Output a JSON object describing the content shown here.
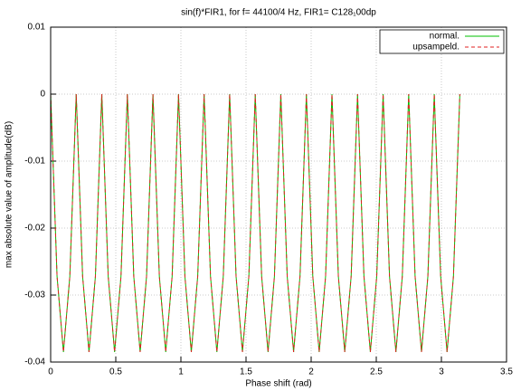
{
  "chart_data": {
    "type": "line",
    "title": "sin(f)*FIR1, for f= 44100/4 Hz, FIR1= C128₁00dp",
    "x_label": "Phase shift (rad)",
    "y_label": "max absolute value of amplitude(dB)",
    "x": [
      0,
      0.0491,
      0.0982,
      0.1473,
      0.1963,
      0.2454,
      0.2945,
      0.3436,
      0.3927,
      0.4418,
      0.4909,
      0.54,
      0.589,
      0.6381,
      0.6872,
      0.7363,
      0.7854,
      0.8345,
      0.8836,
      0.9327,
      0.9817,
      1.0308,
      1.0799,
      1.129,
      1.1781,
      1.2272,
      1.2763,
      1.3254,
      1.3744,
      1.4235,
      1.4726,
      1.5217,
      1.5708,
      1.6199,
      1.669,
      1.7181,
      1.7671,
      1.8162,
      1.8653,
      1.9144,
      1.9635,
      2.0126,
      2.0617,
      2.1108,
      2.1598,
      2.2089,
      2.258,
      2.3071,
      2.3562,
      2.4053,
      2.4544,
      2.5035,
      2.5525,
      2.6016,
      2.6507,
      2.6998,
      2.7489,
      2.798,
      2.8471,
      2.8962,
      2.9452,
      2.9943,
      3.0434,
      3.0925,
      3.1416
    ],
    "series": [
      {
        "name": "normal.",
        "color": "#00c000",
        "dash": false,
        "values": [
          0,
          -0.0272,
          -0.0385,
          -0.0272,
          0,
          -0.0272,
          -0.0385,
          -0.0272,
          0,
          -0.0272,
          -0.0385,
          -0.0272,
          0,
          -0.0272,
          -0.0385,
          -0.0272,
          0,
          -0.0272,
          -0.0385,
          -0.0272,
          0,
          -0.0272,
          -0.0385,
          -0.0272,
          0,
          -0.0272,
          -0.0385,
          -0.0272,
          0,
          -0.0272,
          -0.0385,
          -0.0272,
          0,
          -0.0272,
          -0.0385,
          -0.0272,
          0,
          -0.0272,
          -0.0385,
          -0.0272,
          0,
          -0.0272,
          -0.0385,
          -0.0272,
          0,
          -0.0272,
          -0.0385,
          -0.0272,
          0,
          -0.0272,
          -0.0385,
          -0.0272,
          0,
          -0.0272,
          -0.0385,
          -0.0272,
          0,
          -0.0272,
          -0.0385,
          -0.0272,
          0,
          -0.0272,
          -0.0385,
          -0.0272,
          0
        ]
      },
      {
        "name": "upsampeld.",
        "color": "#e02020",
        "dash": true,
        "values": [
          0,
          -0.0272,
          -0.0385,
          -0.0272,
          0,
          -0.0272,
          -0.0385,
          -0.0272,
          0,
          -0.0272,
          -0.0385,
          -0.0272,
          0,
          -0.0272,
          -0.0385,
          -0.0272,
          0,
          -0.0272,
          -0.0385,
          -0.0272,
          0,
          -0.0272,
          -0.0385,
          -0.0272,
          0,
          -0.0272,
          -0.0385,
          -0.0272,
          0,
          -0.0272,
          -0.0385,
          -0.0272,
          0,
          -0.0272,
          -0.0385,
          -0.0272,
          0,
          -0.0272,
          -0.0385,
          -0.0272,
          0,
          -0.0272,
          -0.0385,
          -0.0272,
          0,
          -0.0272,
          -0.0385,
          -0.0272,
          0,
          -0.0272,
          -0.0385,
          -0.0272,
          0,
          -0.0272,
          -0.0385,
          -0.0272,
          0,
          -0.0272,
          -0.0385,
          -0.0272,
          0,
          -0.0272,
          -0.0385,
          -0.0272,
          0
        ]
      }
    ],
    "xlim": [
      0,
      3.5
    ],
    "xticks": [
      0,
      0.5,
      1,
      1.5,
      2,
      2.5,
      3,
      3.5
    ],
    "ylim": [
      -0.04,
      0.01
    ],
    "yticks": [
      -0.04,
      -0.03,
      -0.02,
      -0.01,
      0,
      0.01
    ],
    "grid": true,
    "legend": "top-right"
  }
}
